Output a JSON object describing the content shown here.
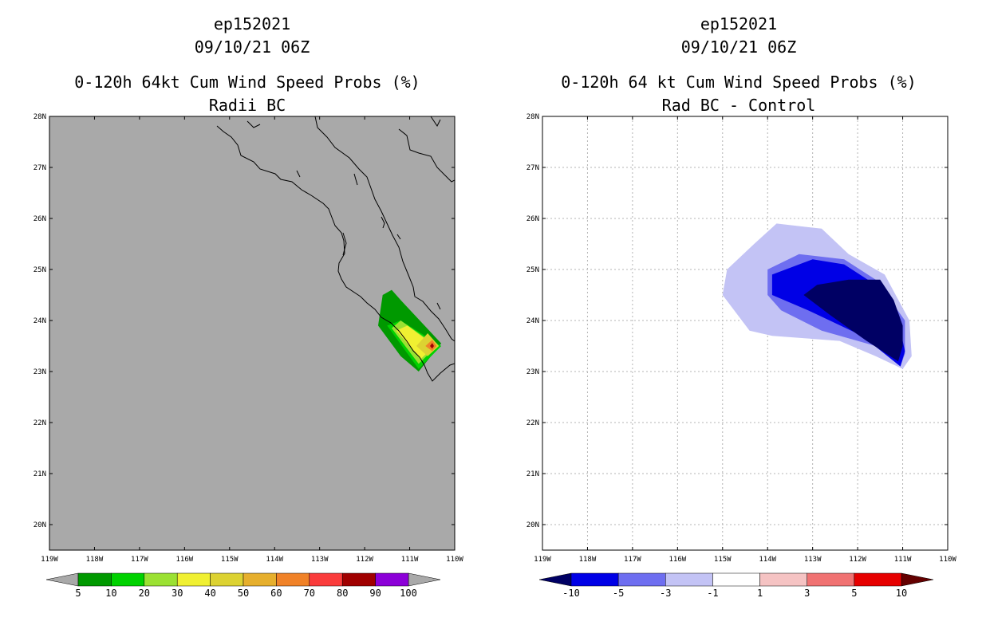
{
  "chart_data": [
    {
      "type": "heatmap",
      "storm_id": "ep152021",
      "datetime": "09/10/21 06Z",
      "title": "0-120h 64kt Cum Wind Speed Probs (%)",
      "subtitle": "Radii BC",
      "lon_labels": [
        "119W",
        "118W",
        "117W",
        "116W",
        "115W",
        "114W",
        "113W",
        "112W",
        "111W",
        "110W"
      ],
      "lat_labels": [
        "20N",
        "21N",
        "22N",
        "23N",
        "24N",
        "25N",
        "26N",
        "27N",
        "28N"
      ],
      "xlim": [
        -119,
        -110
      ],
      "ylim": [
        19.5,
        28
      ],
      "grid": false,
      "colorbar": {
        "levels": [
          "5",
          "10",
          "20",
          "30",
          "40",
          "50",
          "60",
          "70",
          "80",
          "90",
          "100"
        ],
        "colors": [
          "#009900",
          "#00d200",
          "#9be133",
          "#f0f032",
          "#dcd232",
          "#e6af2d",
          "#f08228",
          "#fa3c3c",
          "#a00000",
          "#8c00d8"
        ],
        "end_colors": [
          "#a9a9a9",
          "#a9a9a9"
        ]
      },
      "contours": [
        {
          "level": 5,
          "polygon": [
            [
              -111.6,
              24.5
            ],
            [
              -111.4,
              24.6
            ],
            [
              -111.2,
              24.4
            ],
            [
              -110.3,
              23.55
            ],
            [
              -110.8,
              23.0
            ],
            [
              -111.2,
              23.3
            ],
            [
              -111.7,
              23.9
            ]
          ]
        },
        {
          "level": 10,
          "polygon": [
            [
              -111.2,
              24.0
            ],
            [
              -110.3,
              23.5
            ],
            [
              -110.8,
              23.05
            ],
            [
              -111.5,
              23.9
            ]
          ]
        },
        {
          "level": 20,
          "polygon": [
            [
              -111.2,
              24.0
            ],
            [
              -110.4,
              23.5
            ],
            [
              -110.8,
              23.15
            ],
            [
              -111.4,
              23.85
            ]
          ]
        },
        {
          "level": 30,
          "polygon": [
            [
              -111.05,
              23.9
            ],
            [
              -110.45,
              23.5
            ],
            [
              -110.75,
              23.25
            ],
            [
              -111.3,
              23.8
            ]
          ]
        },
        {
          "level": 40,
          "polygon": [
            [
              -110.6,
              23.75
            ],
            [
              -110.35,
              23.5
            ],
            [
              -110.6,
              23.3
            ],
            [
              -110.85,
              23.5
            ]
          ]
        },
        {
          "level": 60,
          "polygon": [
            [
              -110.5,
              23.62
            ],
            [
              -110.4,
              23.5
            ],
            [
              -110.5,
              23.4
            ],
            [
              -110.65,
              23.5
            ]
          ]
        },
        {
          "level": 80,
          "polygon": [
            [
              -110.5,
              23.56
            ],
            [
              -110.46,
              23.5
            ],
            [
              -110.5,
              23.45
            ],
            [
              -110.55,
              23.5
            ]
          ]
        }
      ]
    },
    {
      "type": "heatmap",
      "storm_id": "ep152021",
      "datetime": "09/10/21 06Z",
      "title": "0-120h 64 kt Cum Wind Speed Probs (%)",
      "subtitle": "Rad BC - Control",
      "lon_labels": [
        "119W",
        "118W",
        "117W",
        "116W",
        "115W",
        "114W",
        "113W",
        "112W",
        "111W",
        "110W"
      ],
      "lat_labels": [
        "20N",
        "21N",
        "22N",
        "23N",
        "24N",
        "25N",
        "26N",
        "27N",
        "28N"
      ],
      "xlim": [
        -119,
        -110
      ],
      "ylim": [
        19.5,
        28
      ],
      "grid": true,
      "colorbar": {
        "levels": [
          "-10",
          "-5",
          "-3",
          "-1",
          "1",
          "3",
          "5",
          "10"
        ],
        "colors": [
          "#0000e6",
          "#6e6ef0",
          "#c3c3f5",
          "#ffffff",
          "#f5c3c3",
          "#f07272",
          "#e60000"
        ],
        "end_colors": [
          "#000064",
          "#640000"
        ]
      },
      "contours": [
        {
          "level": -1,
          "polygon": [
            [
              -114.9,
              25.0
            ],
            [
              -114.3,
              25.5
            ],
            [
              -113.8,
              25.9
            ],
            [
              -112.8,
              25.8
            ],
            [
              -112.2,
              25.3
            ],
            [
              -111.4,
              24.9
            ],
            [
              -110.85,
              24.0
            ],
            [
              -110.8,
              23.3
            ],
            [
              -111.0,
              23.05
            ],
            [
              -111.6,
              23.3
            ],
            [
              -112.4,
              23.6
            ],
            [
              -113.9,
              23.7
            ],
            [
              -114.4,
              23.8
            ],
            [
              -115.0,
              24.5
            ]
          ]
        },
        {
          "level": -3,
          "polygon": [
            [
              -114.0,
              25.0
            ],
            [
              -113.3,
              25.3
            ],
            [
              -112.3,
              25.2
            ],
            [
              -111.6,
              24.8
            ],
            [
              -110.95,
              24.0
            ],
            [
              -110.95,
              23.35
            ],
            [
              -111.05,
              23.1
            ],
            [
              -111.6,
              23.5
            ],
            [
              -112.8,
              23.8
            ],
            [
              -113.7,
              24.2
            ],
            [
              -114.0,
              24.5
            ]
          ]
        },
        {
          "level": -5,
          "polygon": [
            [
              -113.9,
              24.9
            ],
            [
              -113.0,
              25.2
            ],
            [
              -112.3,
              25.1
            ],
            [
              -111.6,
              24.7
            ],
            [
              -111.1,
              24.0
            ],
            [
              -110.95,
              23.4
            ],
            [
              -111.05,
              23.1
            ],
            [
              -111.9,
              23.7
            ],
            [
              -113.1,
              24.2
            ],
            [
              -113.9,
              24.5
            ]
          ]
        },
        {
          "level": -10,
          "polygon": [
            [
              -112.9,
              24.7
            ],
            [
              -112.2,
              24.8
            ],
            [
              -111.5,
              24.8
            ],
            [
              -111.2,
              24.4
            ],
            [
              -111.0,
              23.9
            ],
            [
              -111.0,
              23.5
            ],
            [
              -111.1,
              23.2
            ],
            [
              -111.8,
              23.6
            ],
            [
              -112.6,
              24.1
            ],
            [
              -113.2,
              24.5
            ]
          ]
        }
      ]
    }
  ]
}
